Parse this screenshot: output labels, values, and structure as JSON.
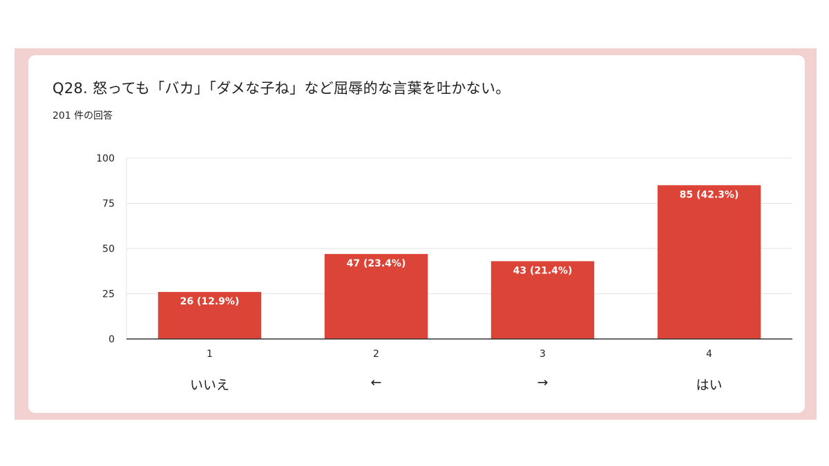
{
  "question": {
    "title": "Q28. 怒っても「バカ」「ダメな子ね」など屈辱的な言葉を吐かない。",
    "response_count": "201 件の回答"
  },
  "category_labels": [
    "いいえ",
    "←",
    "→",
    "はい"
  ],
  "colors": {
    "bar": "#dc4437",
    "frame": "#f4d1d1",
    "card": "#ffffff"
  },
  "chart_data": {
    "type": "bar",
    "categories": [
      "1",
      "2",
      "3",
      "4"
    ],
    "values": [
      26,
      47,
      43,
      85
    ],
    "data_labels": [
      "26 (12.9%)",
      "47 (23.4%)",
      "43 (21.4%)",
      "85 (42.3%)"
    ],
    "yticks": [
      "0",
      "25",
      "50",
      "75",
      "100"
    ],
    "ylim": [
      0,
      100
    ],
    "grid": true,
    "legend": "none"
  }
}
